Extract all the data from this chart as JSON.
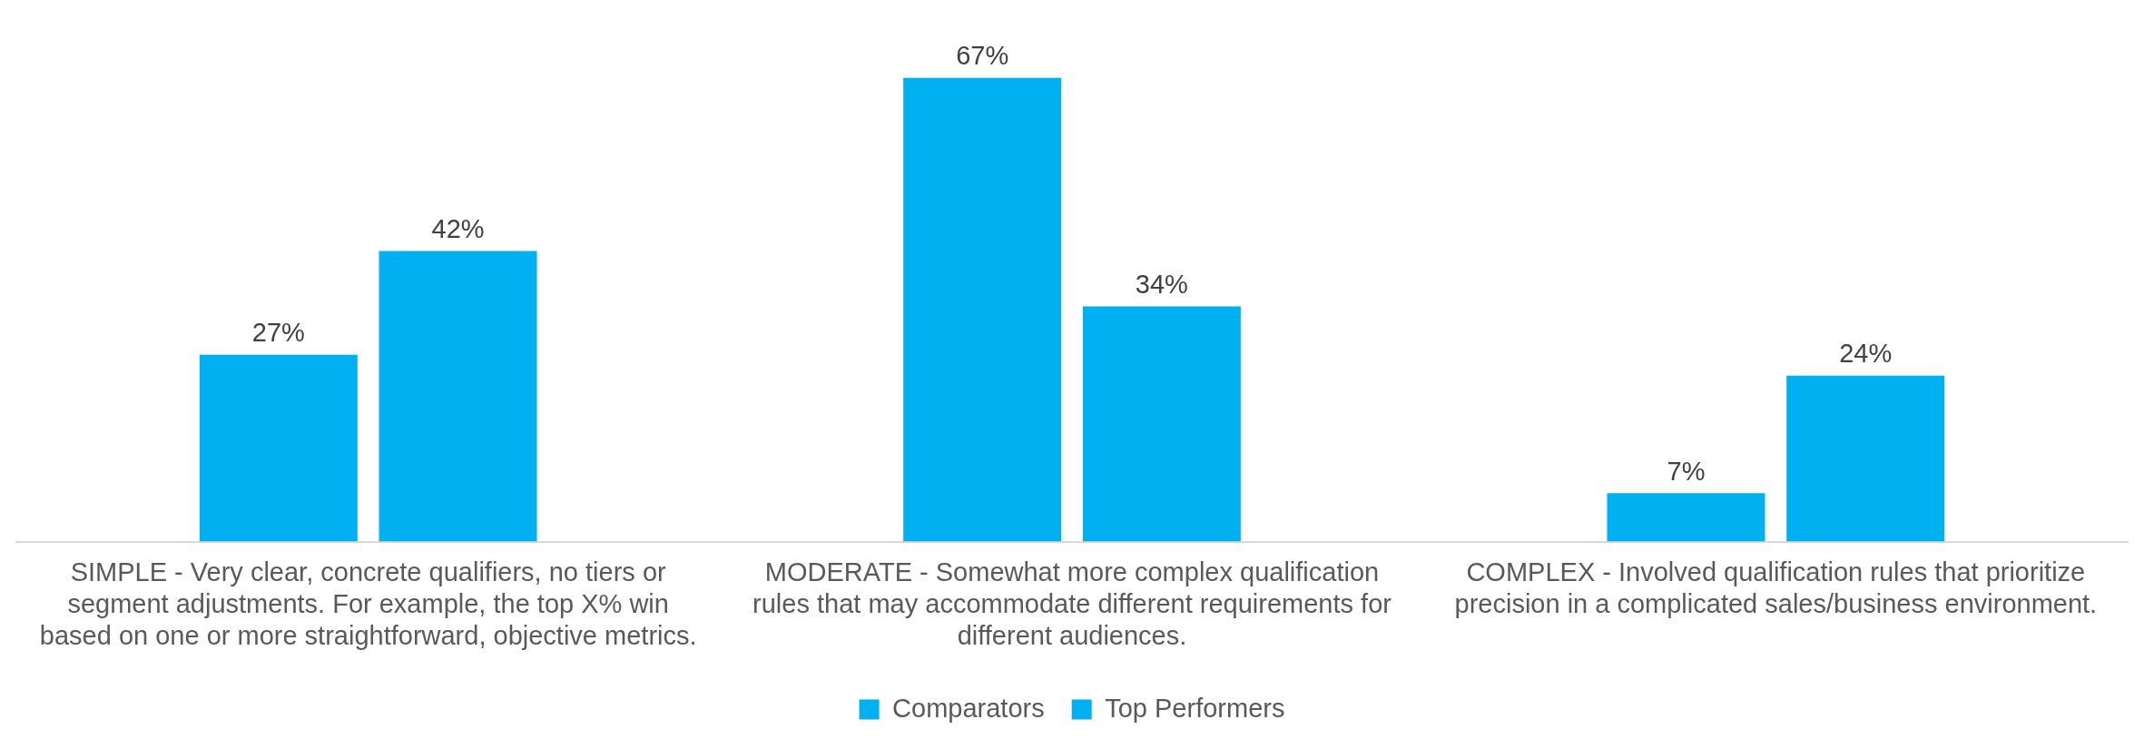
{
  "chart_data": {
    "type": "bar",
    "categories": [
      "SIMPLE - Very clear, concrete qualifiers, no tiers or segment adjustments. For example, the top X% win based on one or more straightforward, objective metrics.",
      "MODERATE - Somewhat more complex qualification rules that may accommodate different requirements for different audiences.",
      "COMPLEX - Involved qualification rules that prioritize precision in a complicated sales/business environment."
    ],
    "series": [
      {
        "name": "Comparators",
        "color": "#00b0f0",
        "values": [
          27,
          67,
          7
        ],
        "value_labels": [
          "27%",
          "67%",
          "7%"
        ]
      },
      {
        "name": "Top Performers",
        "color": "#00b0f0",
        "values": [
          42,
          34,
          24
        ],
        "value_labels": [
          "42%",
          "34%",
          "24%"
        ]
      }
    ],
    "legend": "bottom",
    "grid": false
  }
}
